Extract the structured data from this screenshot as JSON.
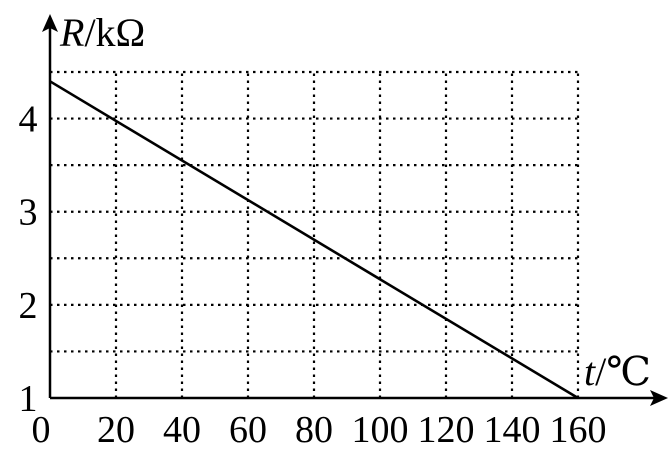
{
  "chart_data": {
    "type": "line",
    "xlabel_var": "t",
    "xlabel_unit": "/℃",
    "ylabel_var": "R",
    "ylabel_unit": "/kΩ",
    "x_ticks": [
      "0",
      "20",
      "40",
      "60",
      "80",
      "100",
      "120",
      "140",
      "160"
    ],
    "y_ticks": [
      "1",
      "2",
      "3",
      "4"
    ],
    "xlim": [
      0,
      160
    ],
    "ylim": [
      1,
      4.5
    ],
    "grid": true,
    "grid_x_step": 20,
    "grid_y_step": 0.5,
    "series": [
      {
        "x": [
          0,
          160
        ],
        "y": [
          4.4,
          1.0
        ]
      }
    ],
    "line_color": "#000000",
    "grid_color": "#000000"
  }
}
